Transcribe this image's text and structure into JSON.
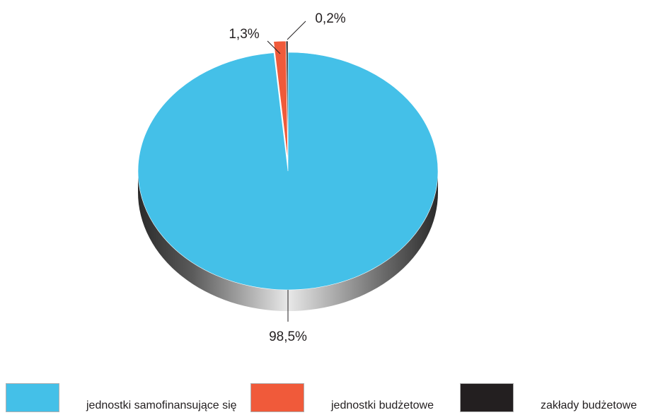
{
  "chart_data": {
    "type": "pie",
    "title": "",
    "series": [
      {
        "name": "",
        "values": [
          {
            "category": "jednostki samofinansujące się",
            "value": 98.5,
            "label": "98,5%",
            "color": "#44c0e8"
          },
          {
            "category": "jednostki budżetowe",
            "value": 1.3,
            "label": "1,3%",
            "color": "#f05a3a"
          },
          {
            "category": "zakłady budżetowe",
            "value": 0.2,
            "label": "0,2%",
            "color": "#231f20"
          }
        ]
      }
    ],
    "legend_position": "bottom",
    "style": "3d"
  },
  "legend": {
    "items": [
      {
        "label": "jednostki samofinansujące się",
        "color": "#44c0e8"
      },
      {
        "label": "jednostki budżetowe",
        "color": "#f05a3a"
      },
      {
        "label": "zakłady budżetowe",
        "color": "#231f20"
      }
    ]
  }
}
